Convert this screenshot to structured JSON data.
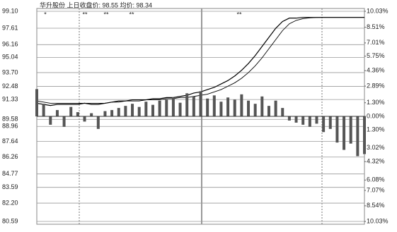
{
  "chart_data": {
    "type": "line",
    "title": "华升股份 上日收盘价: 98.55 均价: 98.34",
    "markers": [
      "*",
      "**",
      "**",
      "**",
      "**"
    ],
    "x": [
      0,
      5,
      10,
      15,
      20,
      25,
      30,
      35,
      40,
      45,
      50,
      55,
      60,
      65,
      70,
      75,
      80,
      85,
      90,
      95,
      100,
      105,
      110,
      115,
      120,
      125,
      130,
      135,
      140,
      145,
      150,
      155,
      160,
      165,
      170,
      175,
      180,
      185,
      190,
      195,
      200,
      205,
      210,
      215,
      220,
      225,
      230,
      235,
      240
    ],
    "xlim": [
      0,
      240
    ],
    "series": [
      {
        "name": "price",
        "color": "#000000",
        "values": [
          91.0,
          90.9,
          90.8,
          90.9,
          90.9,
          90.9,
          90.9,
          91.0,
          90.9,
          90.9,
          91.0,
          91.1,
          91.2,
          91.2,
          91.3,
          91.3,
          91.3,
          91.4,
          91.4,
          91.5,
          91.5,
          91.6,
          91.7,
          91.9,
          92.0,
          92.2,
          92.4,
          92.7,
          93.0,
          93.4,
          93.9,
          94.5,
          95.2,
          96.0,
          96.8,
          97.6,
          98.2,
          98.5,
          98.5,
          98.56,
          98.56,
          98.56,
          98.56,
          98.56,
          98.56,
          98.56,
          98.56,
          98.56,
          98.56
        ]
      },
      {
        "name": "average",
        "color": "#000000",
        "values": [
          91.2,
          91.1,
          91.0,
          91.0,
          91.0,
          91.0,
          91.0,
          91.0,
          91.0,
          91.0,
          91.0,
          91.1,
          91.1,
          91.2,
          91.2,
          91.2,
          91.3,
          91.3,
          91.3,
          91.4,
          91.4,
          91.5,
          91.5,
          91.6,
          91.7,
          91.8,
          92.0,
          92.2,
          92.5,
          92.8,
          93.2,
          93.7,
          94.3,
          95.0,
          95.8,
          96.6,
          97.4,
          98.0,
          98.3,
          98.45,
          98.52,
          98.55,
          98.56,
          98.56,
          98.56,
          98.56,
          98.56,
          98.56,
          98.56
        ]
      },
      {
        "name": "volume",
        "color": "#555555",
        "axis": "y2",
        "values": [
          2.6,
          1.2,
          -0.8,
          0.6,
          -1.0,
          0.9,
          0.4,
          -0.5,
          0.3,
          -1.2,
          0.5,
          0.6,
          0.8,
          1.0,
          1.2,
          0.9,
          1.4,
          1.1,
          1.5,
          1.6,
          1.8,
          1.3,
          2.2,
          1.9,
          2.4,
          1.7,
          2.0,
          1.4,
          1.8,
          1.6,
          2.1,
          1.5,
          1.2,
          1.9,
          1.0,
          1.5,
          0.8,
          -0.4,
          -0.6,
          -0.8,
          -1.0,
          -0.7,
          -1.5,
          -1.2,
          -2.5,
          -3.2,
          -2.6,
          -3.8,
          -3.6
        ]
      }
    ],
    "ylim": [
      80.59,
      99.1
    ],
    "yticks": [
      {
        "value": 99.1,
        "label": "99.10"
      },
      97.61,
      96.16,
      95.04,
      {
        "value": 93.7,
        "label": "93.70"
      },
      92.48,
      91.33,
      89.58,
      88.96,
      87.64,
      86.26,
      84.77,
      83.59,
      {
        "value": 82.2,
        "label": "82.20"
      },
      80.59
    ],
    "y2lim": [
      -10.03,
      10.03
    ],
    "y2ticks": [
      {
        "value": 10.03,
        "label": "10.03%"
      },
      {
        "value": 8.51,
        "label": "8.51%"
      },
      {
        "value": 7.01,
        "label": "7.01%"
      },
      {
        "value": 5.75,
        "label": "5.75%"
      },
      {
        "value": 4.36,
        "label": "4.36%"
      },
      {
        "value": 2.89,
        "label": "2.89%"
      },
      {
        "value": 1.3,
        "label": "1.30%"
      },
      {
        "value": 0,
        "label": "0.00%"
      },
      {
        "value": -1.3,
        "label": "1.30%"
      },
      {
        "value": -3.02,
        "label": "3.02%"
      },
      {
        "value": -4.32,
        "label": "4.32%"
      },
      {
        "value": -6.08,
        "label": "6.08%"
      },
      {
        "value": -7.07,
        "label": "7.07%"
      },
      {
        "value": -8.54,
        "label": "8.54%"
      },
      {
        "value": -10.03,
        "label": "10.03%"
      }
    ],
    "grid": true
  }
}
